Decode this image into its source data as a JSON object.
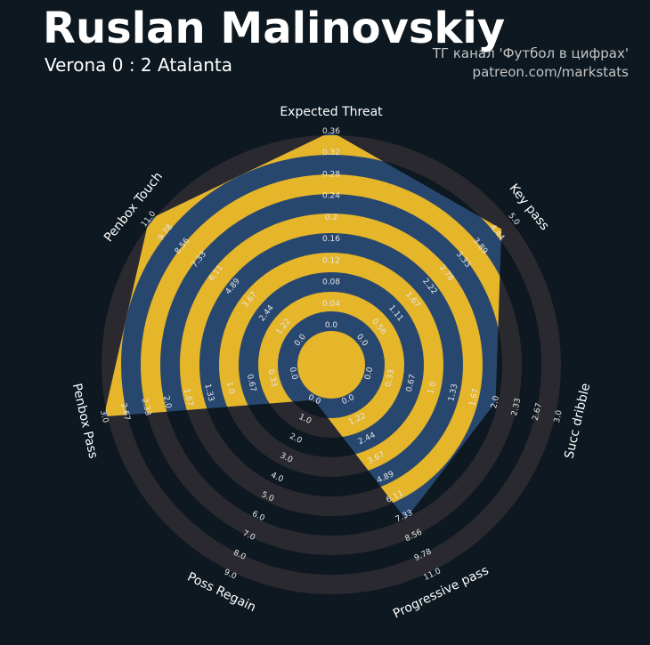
{
  "title": "Ruslan Malinovskiy",
  "subtitle": "Verona 0 : 2 Atalanta",
  "credits": {
    "line1": "ТГ канал 'Футбол в цифрах'",
    "line2": "patreon.com/markstats"
  },
  "colors": {
    "background": "#0d1820",
    "ring_outside": "#2b2930",
    "ring_inside": "#e5b52a",
    "polygon_fill": "#28476f"
  },
  "chart_data": {
    "type": "radar",
    "title": "Ruslan Malinovskiy",
    "subtitle": "Verona 0 : 2 Atalanta",
    "params": [
      {
        "name": "Expected Threat",
        "min": 0.0,
        "max": 0.36,
        "value": 0.36,
        "ticks": [
          "0.0",
          "0.04",
          "0.08",
          "0.12",
          "0.16",
          "0.2",
          "0.24",
          "0.28",
          "0.32",
          "0.36"
        ]
      },
      {
        "name": "Key pass",
        "min": 0.0,
        "max": 5.0,
        "value": 4.6,
        "ticks": [
          "0.0",
          "0.56",
          "1.11",
          "1.67",
          "2.22",
          "2.78",
          "3.33",
          "3.89",
          "4.44",
          "5.0"
        ]
      },
      {
        "name": "Succ dribble",
        "min": 0.0,
        "max": 3.0,
        "value": 2.0,
        "ticks": [
          "0.0",
          "0.33",
          "0.67",
          "1.0",
          "1.33",
          "1.67",
          "2.0",
          "2.33",
          "2.67",
          "3.0"
        ]
      },
      {
        "name": "Progressive pass",
        "min": 0.0,
        "max": 11.0,
        "value": 7.5,
        "ticks": [
          "0.0",
          "1.22",
          "2.44",
          "3.67",
          "4.89",
          "6.11",
          "7.33",
          "8.56",
          "9.78",
          "11.0"
        ]
      },
      {
        "name": "Poss Regain",
        "min": 0.0,
        "max": 9.0,
        "value": 0.0,
        "ticks": [
          "0.0",
          "1.0",
          "2.0",
          "3.0",
          "4.0",
          "5.0",
          "6.0",
          "7.0",
          "8.0",
          "9.0"
        ]
      },
      {
        "name": "Penbox Pass",
        "min": 0.0,
        "max": 3.0,
        "value": 3.0,
        "ticks": [
          "0.0",
          "0.33",
          "0.67",
          "1.0",
          "1.33",
          "1.67",
          "2.0",
          "2.33",
          "2.67",
          "3.0"
        ]
      },
      {
        "name": "Penbox Touch",
        "min": 0.0,
        "max": 11.0,
        "value": 11.0,
        "ticks": [
          "0.0",
          "1.22",
          "2.44",
          "3.67",
          "4.89",
          "6.11",
          "7.33",
          "8.56",
          "9.78",
          "11.0"
        ]
      }
    ]
  }
}
